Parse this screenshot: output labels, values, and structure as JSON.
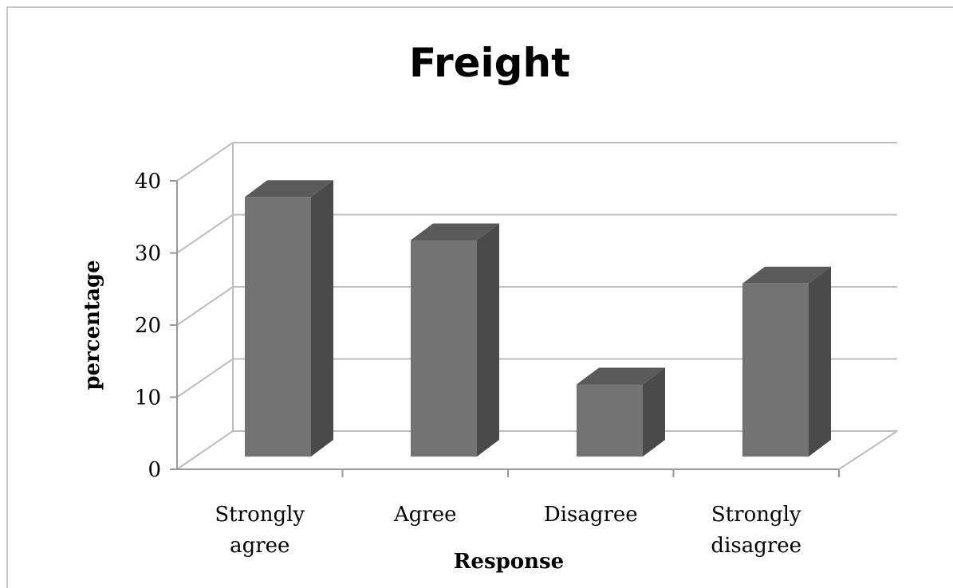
{
  "chart_data": {
    "type": "bar",
    "title": "Freight",
    "xlabel": "Response",
    "ylabel": "percentage",
    "categories": [
      [
        "Strongly",
        "agree"
      ],
      [
        "Agree"
      ],
      [
        "Disagree"
      ],
      [
        "Strongly",
        "disagree"
      ]
    ],
    "values": [
      36,
      30,
      10,
      24
    ],
    "ylim": [
      0,
      40
    ],
    "yticks": [
      "0",
      "10",
      "20",
      "30",
      "40"
    ],
    "grid": true,
    "legend": "none",
    "style": "3d-column",
    "colors": {
      "front": "#737373",
      "side": "#4a4a4a",
      "top": "#5a5a5a",
      "grid": "#bdbdbd"
    }
  }
}
